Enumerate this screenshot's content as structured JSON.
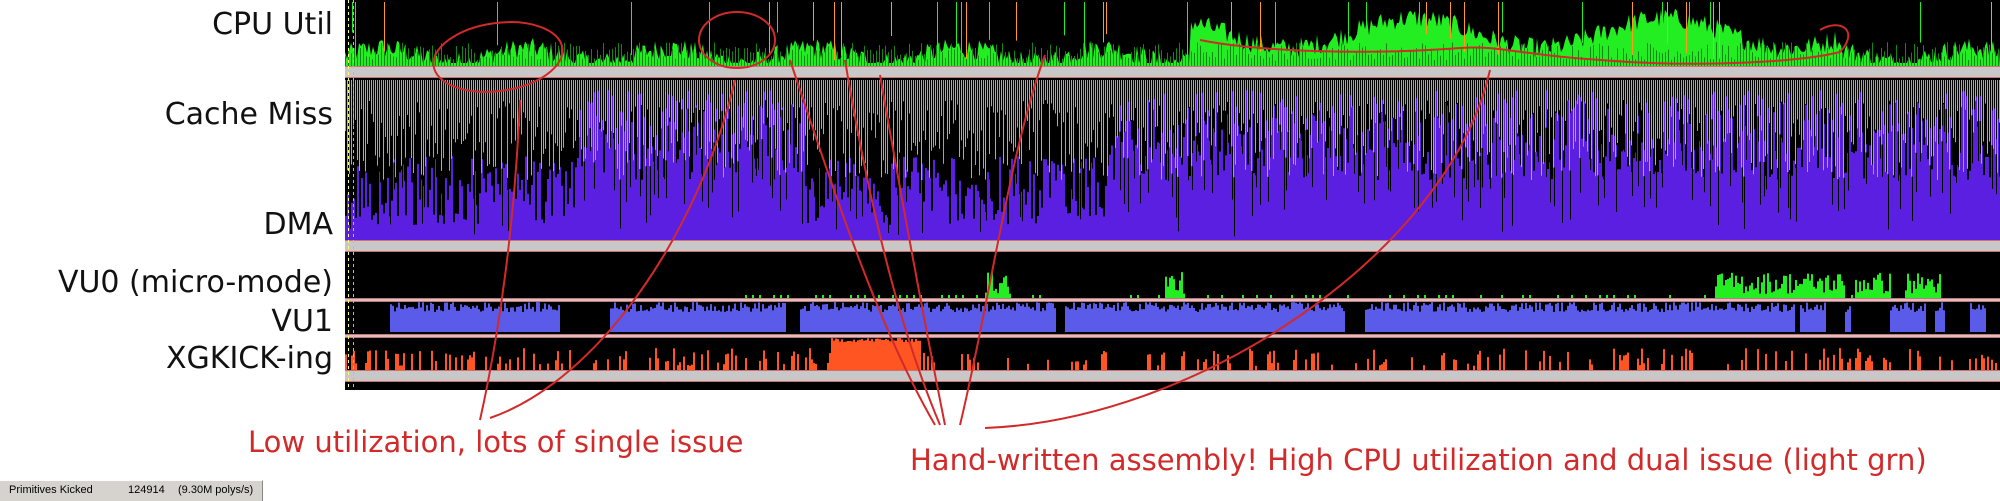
{
  "tracks": {
    "cpu_util": "CPU Util",
    "cache_miss": "Cache Miss",
    "dma": "DMA",
    "vu0": "VU0 (micro-mode)",
    "vu1": "VU1",
    "xgkick": "XGKICK-ing"
  },
  "annotations": {
    "low_util": "Low utilization, lots of single issue",
    "hand_written": "Hand-written assembly! High CPU utilization and dual issue (light grn)"
  },
  "status_bar": {
    "label": "Primitives Kicked",
    "count": "124914",
    "rate": "(9.30M polys/s)"
  },
  "colors": {
    "timeline_bg": "#000000",
    "cpu_green": "#22ee22",
    "cpu_dark_green": "#118811",
    "cache_orange": "#ff9a1a",
    "cache_pink": "#ff7a6a",
    "cache_cyan": "#35c6ea",
    "dma_purple": "#5a1fe0",
    "vu1_blue": "#5b5bea",
    "xgkick_orange": "#ff5522",
    "separator": "#c8c8c8",
    "separator_red": "#d07070",
    "annotation_red": "#d12a2a"
  }
}
